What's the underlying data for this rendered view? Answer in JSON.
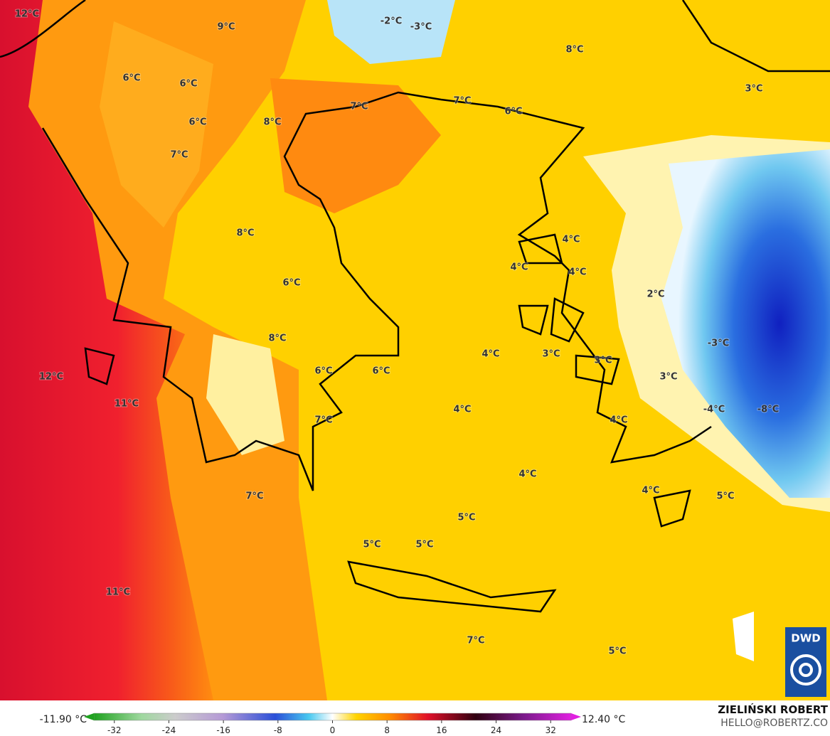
{
  "map": {
    "labels": [
      "12°C",
      "9°C",
      "-2°C",
      "-3°C",
      "8°C",
      "6°C",
      "6°C",
      "7°C",
      "7°C",
      "6°C",
      "3°C",
      "6°C",
      "8°C",
      "7°C",
      "8°C",
      "4°C",
      "4°C",
      "4°C",
      "6°C",
      "2°C",
      "8°C",
      "-3°C",
      "4°C",
      "3°C",
      "3°C",
      "12°C",
      "6°C",
      "6°C",
      "3°C",
      "11°C",
      "4°C",
      "-4°C",
      "-8°C",
      "4°C",
      "7°C",
      "4°C",
      "4°C",
      "5°C",
      "7°C",
      "5°C",
      "5°C",
      "5°C",
      "11°C",
      "7°C",
      "5°C"
    ],
    "logo": "DWD"
  },
  "colorbar": {
    "min_label": "-11.90 °C",
    "max_label": "12.40 °C",
    "lim": [
      -35,
      35
    ],
    "ticks": [
      -32,
      -24,
      -16,
      -8,
      0,
      8,
      16,
      24,
      32
    ]
  },
  "footer": {
    "author": "ZIELIŃSKI ROBERT",
    "email": "HELLO@ROBERTZ.CO"
  }
}
